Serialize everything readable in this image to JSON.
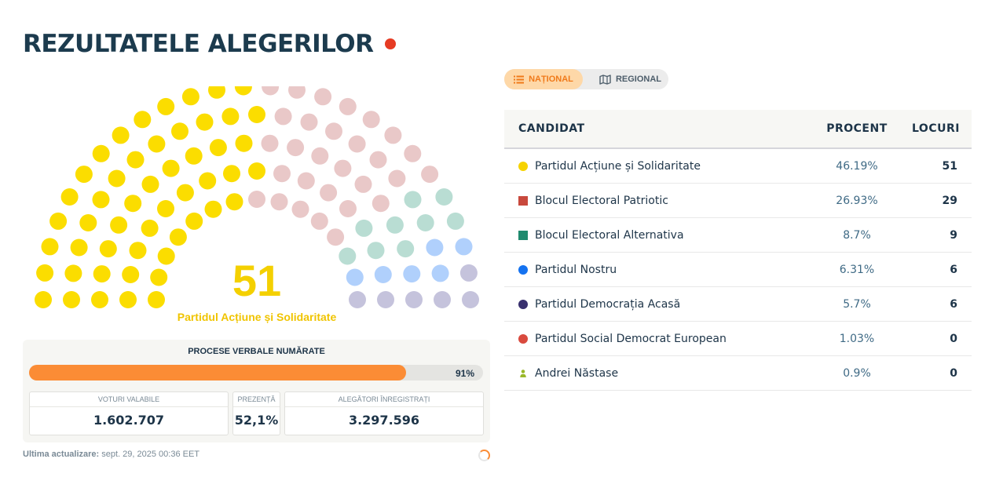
{
  "title": "REZULTATELE ALEGERILOR",
  "hemicycle": {
    "total_seats": 101,
    "leading_seats": "51",
    "leading_party": "Partidul Acțiune și Solidaritate",
    "groups": [
      {
        "party": "Partidul Acțiune și Solidaritate",
        "seats": 51,
        "color": "#fbdd00"
      },
      {
        "party": "Blocul Electoral Patriotic",
        "seats": 29,
        "color": "#e9c8c8"
      },
      {
        "party": "Blocul Electoral Alternativa",
        "seats": 9,
        "color": "#b9ddd3"
      },
      {
        "party": "Partidul Nostru",
        "seats": 6,
        "color": "#b0d0fc"
      },
      {
        "party": "Partidul Democrația Acasă",
        "seats": 6,
        "color": "#c5c3dc"
      }
    ]
  },
  "count": {
    "title": "PROCESE VERBALE NUMĂRATE",
    "progress_percent": 91,
    "progress_label": "91%",
    "valid_votes_label": "VOTURI VALABILE",
    "valid_votes": "1.602.707",
    "turnout_label": "PREZENȚĂ",
    "turnout": "52,1%",
    "registered_label": "ALEGĂTORI ÎNREGISTRAȚI",
    "registered": "3.297.596"
  },
  "updated": {
    "label": "Ultima actualizare:",
    "value": "sept. 29, 2025 00:36 EET"
  },
  "toggle": {
    "national": "NAȚIONAL",
    "regional": "REGIONAL"
  },
  "table": {
    "headers": {
      "candidate": "CANDIDAT",
      "percent": "PROCENT",
      "seats": "LOCURI"
    },
    "rows": [
      {
        "name": "Partidul Acțiune și Solidaritate",
        "percent": "46.19%",
        "seats": "51",
        "color": "#f6d300",
        "shape": "circle"
      },
      {
        "name": "Blocul Electoral Patriotic",
        "percent": "26.93%",
        "seats": "29",
        "color": "#c8493d",
        "shape": "square"
      },
      {
        "name": "Blocul Electoral Alternativa",
        "percent": "8.7%",
        "seats": "9",
        "color": "#1f8a6e",
        "shape": "square"
      },
      {
        "name": "Partidul Nostru",
        "percent": "6.31%",
        "seats": "6",
        "color": "#1472f0",
        "shape": "circle"
      },
      {
        "name": "Partidul Democrația Acasă",
        "percent": "5.7%",
        "seats": "6",
        "color": "#38306e",
        "shape": "circle"
      },
      {
        "name": "Partidul Social Democrat European",
        "percent": "1.03%",
        "seats": "0",
        "color": "#d94a3e",
        "shape": "circle"
      },
      {
        "name": "Andrei Năstase",
        "percent": "0.9%",
        "seats": "0",
        "color": "#9ab82a",
        "shape": "person"
      }
    ]
  }
}
